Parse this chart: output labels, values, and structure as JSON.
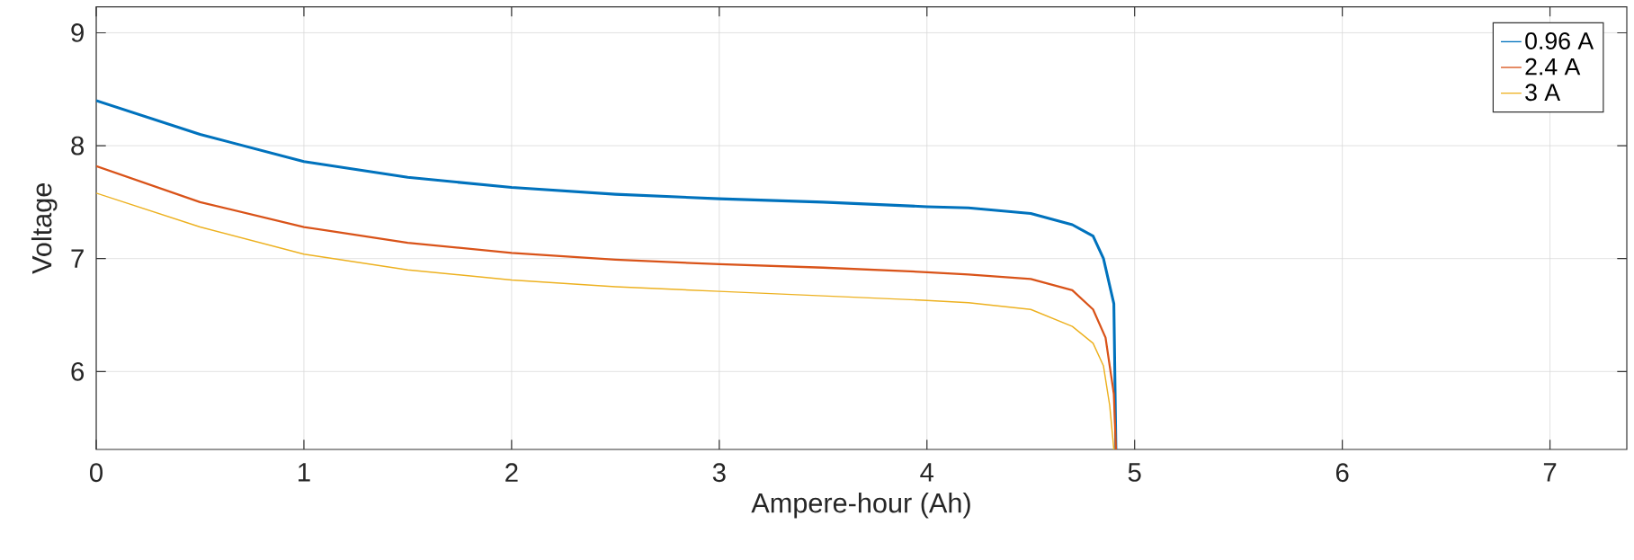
{
  "chart_data": {
    "type": "line",
    "xlabel": "Ampere-hour (Ah)",
    "ylabel": "Voltage",
    "xlim": [
      0,
      7.37
    ],
    "ylim": [
      5.31,
      9.23
    ],
    "xticks": [
      0,
      1,
      2,
      3,
      4,
      5,
      6,
      7
    ],
    "yticks": [
      6,
      7,
      8,
      9
    ],
    "grid": true,
    "legend": "top right",
    "series": [
      {
        "name": "0.96 A",
        "color": "#0072bd",
        "x": [
          0,
          0.5,
          1,
          1.5,
          2,
          2.5,
          3,
          3.5,
          4,
          4.2,
          4.5,
          4.7,
          4.8,
          4.85,
          4.9,
          4.91
        ],
        "values": [
          8.4,
          8.1,
          7.86,
          7.72,
          7.63,
          7.57,
          7.53,
          7.5,
          7.46,
          7.45,
          7.4,
          7.3,
          7.2,
          7.0,
          6.6,
          5.31
        ]
      },
      {
        "name": "2.4 A",
        "color": "#d95319",
        "x": [
          0,
          0.5,
          1,
          1.5,
          2,
          2.5,
          3,
          3.5,
          4,
          4.2,
          4.5,
          4.7,
          4.8,
          4.86,
          4.9,
          4.91
        ],
        "values": [
          7.82,
          7.5,
          7.28,
          7.14,
          7.05,
          6.99,
          6.95,
          6.92,
          6.88,
          6.86,
          6.82,
          6.72,
          6.55,
          6.3,
          5.8,
          5.31
        ]
      },
      {
        "name": "3 A",
        "color": "#edb120",
        "x": [
          0,
          0.5,
          1,
          1.5,
          2,
          2.5,
          3,
          3.5,
          4,
          4.2,
          4.5,
          4.7,
          4.8,
          4.85,
          4.88,
          4.9
        ],
        "values": [
          7.58,
          7.28,
          7.04,
          6.9,
          6.81,
          6.75,
          6.71,
          6.67,
          6.63,
          6.61,
          6.55,
          6.4,
          6.25,
          6.05,
          5.7,
          5.31
        ]
      }
    ]
  }
}
